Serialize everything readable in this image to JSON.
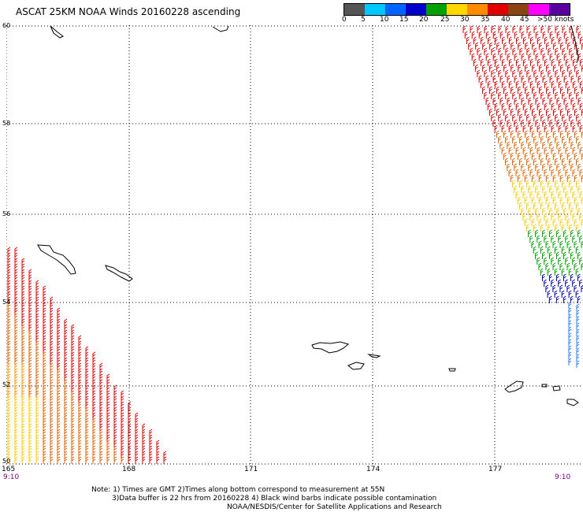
{
  "title": "ASCAT 25KM NOAA Winds 20160228 ascending",
  "legend": {
    "labels": [
      "0",
      "5",
      "10",
      "15",
      "20",
      "25",
      "30",
      "35",
      "40",
      "45",
      ">50 knots"
    ],
    "colors": [
      "#555555",
      "#9a9a9a",
      "#00c8ff",
      "#0064ff",
      "#0000cc",
      "#00a000",
      "#ffff00",
      "#ff8c00",
      "#ff4000",
      "#e00000",
      "#a0522d",
      "#c0c0ff",
      "#ff00ff",
      "#9000c0",
      "#5000a0"
    ]
  },
  "latitudes": [
    "60",
    "58",
    "56",
    "54",
    "52",
    "50"
  ],
  "longitudes": [
    "165",
    "168",
    "171",
    "174",
    "177"
  ],
  "times": {
    "left": "9:10",
    "right": "9:10"
  },
  "notes": {
    "line1": "Note: 1) Times are GMT 2)Times along bottom correspond to measurement at 55N",
    "line2": "3)Data buffer is 22 hrs from 20160228 4) Black wind barbs indicate possible contamination",
    "line3": "NOAA/NESDIS/Center for Satellite Applications and Research"
  }
}
